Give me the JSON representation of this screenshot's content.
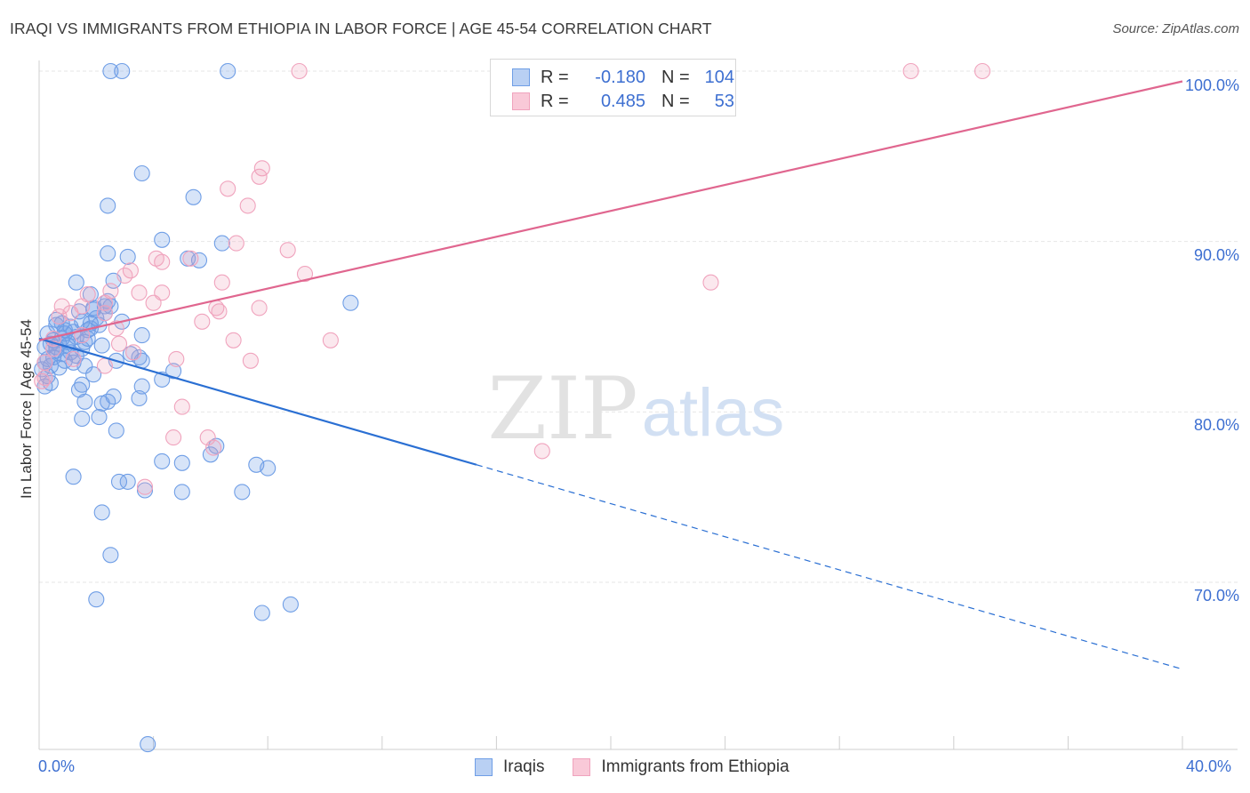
{
  "title": "IRAQI VS IMMIGRANTS FROM ETHIOPIA IN LABOR FORCE | AGE 45-54 CORRELATION CHART",
  "source": "Source: ZipAtlas.com",
  "watermark": {
    "zip": "ZIP",
    "atlas": "atlas"
  },
  "colors": {
    "blue": "#6f9ee6",
    "blue_line": "#2a6fd3",
    "pink": "#f0a3bd",
    "pink_line": "#e0668f",
    "tick_text": "#3d6fd1"
  },
  "legend_top": {
    "rows": [
      {
        "r_label": "R =",
        "r_value": "-0.180",
        "n_label": "N =",
        "n_value": "104"
      },
      {
        "r_label": "R =",
        "r_value": "0.485",
        "n_label": "N =",
        "n_value": "53"
      }
    ]
  },
  "legend_bottom": {
    "series": [
      "Iraqis",
      "Immigrants from Ethiopia"
    ]
  },
  "axes": {
    "y_label": "In Labor Force | Age 45-54",
    "x_ticks": [
      "0.0%",
      "40.0%"
    ],
    "y_ticks": [
      "100.0%",
      "90.0%",
      "80.0%",
      "70.0%"
    ]
  },
  "chart_data": {
    "type": "scatter",
    "title": "IRAQI VS IMMIGRANTS FROM ETHIOPIA IN LABOR FORCE | AGE 45-54 CORRELATION CHART",
    "xlabel": "",
    "ylabel": "In Labor Force | Age 45-54",
    "xlim": [
      0,
      40
    ],
    "ylim": [
      60,
      101.5
    ],
    "y_gridlines": [
      70,
      80,
      90,
      100
    ],
    "series": [
      {
        "name": "Iraqis",
        "r": -0.18,
        "n": 104,
        "trend": {
          "x0": 0,
          "y0": 84.3,
          "x1": 15.3,
          "y1": 76.9,
          "dash_to_x": 40,
          "dash_to_y": 64.9
        },
        "points": [
          [
            2.5,
            100
          ],
          [
            2.9,
            100
          ],
          [
            6.6,
            100
          ],
          [
            3.6,
            94
          ],
          [
            5.4,
            92.6
          ],
          [
            2.4,
            92.1
          ],
          [
            4.3,
            90.1
          ],
          [
            6.4,
            89.9
          ],
          [
            2.4,
            89.3
          ],
          [
            3.1,
            89.1
          ],
          [
            5.2,
            89
          ],
          [
            5.6,
            88.9
          ],
          [
            1.3,
            87.6
          ],
          [
            2.6,
            87.7
          ],
          [
            1.8,
            86.9
          ],
          [
            10.9,
            86.4
          ],
          [
            2.3,
            86.2
          ],
          [
            1.9,
            86
          ],
          [
            2.3,
            85.8
          ],
          [
            0.6,
            85.4
          ],
          [
            0.8,
            85.2
          ],
          [
            1.5,
            85.3
          ],
          [
            1.1,
            85
          ],
          [
            1.7,
            84.8
          ],
          [
            2.1,
            85.1
          ],
          [
            0.3,
            84.6
          ],
          [
            0.9,
            84.6
          ],
          [
            1.3,
            84.4
          ],
          [
            0.5,
            84.2
          ],
          [
            0.7,
            84
          ],
          [
            1.0,
            84.1
          ],
          [
            1.7,
            84.3
          ],
          [
            3.6,
            84.5
          ],
          [
            0.2,
            83.8
          ],
          [
            0.6,
            83.6
          ],
          [
            2.2,
            83.9
          ],
          [
            1.3,
            83.3
          ],
          [
            3.2,
            83.4
          ],
          [
            3.5,
            83.2
          ],
          [
            0.9,
            83
          ],
          [
            0.4,
            82.7
          ],
          [
            1.6,
            82.7
          ],
          [
            2.7,
            83
          ],
          [
            3.6,
            83
          ],
          [
            4.7,
            82.4
          ],
          [
            0.1,
            82.5
          ],
          [
            0.3,
            82.1
          ],
          [
            1.9,
            82.2
          ],
          [
            4.3,
            81.9
          ],
          [
            1.5,
            81.6
          ],
          [
            1.4,
            81.3
          ],
          [
            0.2,
            81.5
          ],
          [
            3.6,
            81.5
          ],
          [
            2.6,
            80.9
          ],
          [
            3.5,
            80.8
          ],
          [
            1.6,
            80.6
          ],
          [
            2.2,
            80.5
          ],
          [
            2.4,
            80.6
          ],
          [
            1.5,
            79.6
          ],
          [
            2.1,
            79.7
          ],
          [
            2.7,
            78.9
          ],
          [
            6.2,
            78
          ],
          [
            4.3,
            77.1
          ],
          [
            5.0,
            77
          ],
          [
            7.6,
            76.9
          ],
          [
            8.0,
            76.7
          ],
          [
            6.0,
            77.5
          ],
          [
            1.2,
            76.2
          ],
          [
            2.8,
            75.9
          ],
          [
            3.1,
            75.9
          ],
          [
            5.0,
            75.3
          ],
          [
            3.7,
            75.4
          ],
          [
            7.1,
            75.3
          ],
          [
            2.2,
            74.1
          ],
          [
            2.5,
            71.6
          ],
          [
            2.0,
            69
          ],
          [
            7.8,
            68.2
          ],
          [
            8.8,
            68.7
          ],
          [
            3.8,
            60.5
          ],
          [
            0.4,
            84
          ],
          [
            1.2,
            84.7
          ],
          [
            2.0,
            85.5
          ],
          [
            0.8,
            83.4
          ],
          [
            1.8,
            84.9
          ],
          [
            0.5,
            83.2
          ],
          [
            1.1,
            83.5
          ],
          [
            2.5,
            86.2
          ],
          [
            0.6,
            85.1
          ],
          [
            0.2,
            82.9
          ],
          [
            1.4,
            85.9
          ],
          [
            2.9,
            85.3
          ],
          [
            0.9,
            84.8
          ],
          [
            1.6,
            84.1
          ],
          [
            0.3,
            83.1
          ],
          [
            0.7,
            82.6
          ],
          [
            1.0,
            83.9
          ],
          [
            2.4,
            86.5
          ],
          [
            1.8,
            85.2
          ],
          [
            0.4,
            81.7
          ],
          [
            1.2,
            82.9
          ],
          [
            0.8,
            84.3
          ],
          [
            1.5,
            83.7
          ],
          [
            0.6,
            83.8
          ],
          [
            1.9,
            86.1
          ]
        ]
      },
      {
        "name": "Immigrants from Ethiopia",
        "r": 0.485,
        "n": 53,
        "trend": {
          "x0": 0,
          "y0": 84.2,
          "x1": 40,
          "y1": 99.4
        },
        "points": [
          [
            9.1,
            100
          ],
          [
            30.5,
            100
          ],
          [
            33,
            100
          ],
          [
            7.8,
            94.3
          ],
          [
            7.7,
            93.8
          ],
          [
            6.6,
            93.1
          ],
          [
            7.3,
            92.1
          ],
          [
            6.9,
            89.9
          ],
          [
            8.7,
            89.5
          ],
          [
            4.1,
            89
          ],
          [
            4.3,
            88.8
          ],
          [
            5.3,
            89
          ],
          [
            3.2,
            88.3
          ],
          [
            9.3,
            88.1
          ],
          [
            3.0,
            88
          ],
          [
            6.4,
            87.6
          ],
          [
            23.5,
            87.6
          ],
          [
            2.5,
            87.1
          ],
          [
            3.5,
            87
          ],
          [
            4.3,
            87
          ],
          [
            1.7,
            86.9
          ],
          [
            4.0,
            86.4
          ],
          [
            0.8,
            86.2
          ],
          [
            2.3,
            86.4
          ],
          [
            1.5,
            86.2
          ],
          [
            7.7,
            86.1
          ],
          [
            6.2,
            86.1
          ],
          [
            6.3,
            85.9
          ],
          [
            1.1,
            85.8
          ],
          [
            0.7,
            85.6
          ],
          [
            2.3,
            85.8
          ],
          [
            5.7,
            85.3
          ],
          [
            2.7,
            84.9
          ],
          [
            1.5,
            84.5
          ],
          [
            0.5,
            84.3
          ],
          [
            6.8,
            84.2
          ],
          [
            10.2,
            84.2
          ],
          [
            2.8,
            84
          ],
          [
            3.3,
            83.5
          ],
          [
            1.2,
            83.1
          ],
          [
            4.8,
            83.1
          ],
          [
            7.4,
            83
          ],
          [
            2.3,
            82.7
          ],
          [
            0.2,
            82.9
          ],
          [
            0.2,
            82
          ],
          [
            0.1,
            81.8
          ],
          [
            5.0,
            80.3
          ],
          [
            4.7,
            78.5
          ],
          [
            5.9,
            78.5
          ],
          [
            6.1,
            77.9
          ],
          [
            17.6,
            77.7
          ],
          [
            3.7,
            75.6
          ],
          [
            0.5,
            83.7
          ]
        ]
      }
    ]
  }
}
